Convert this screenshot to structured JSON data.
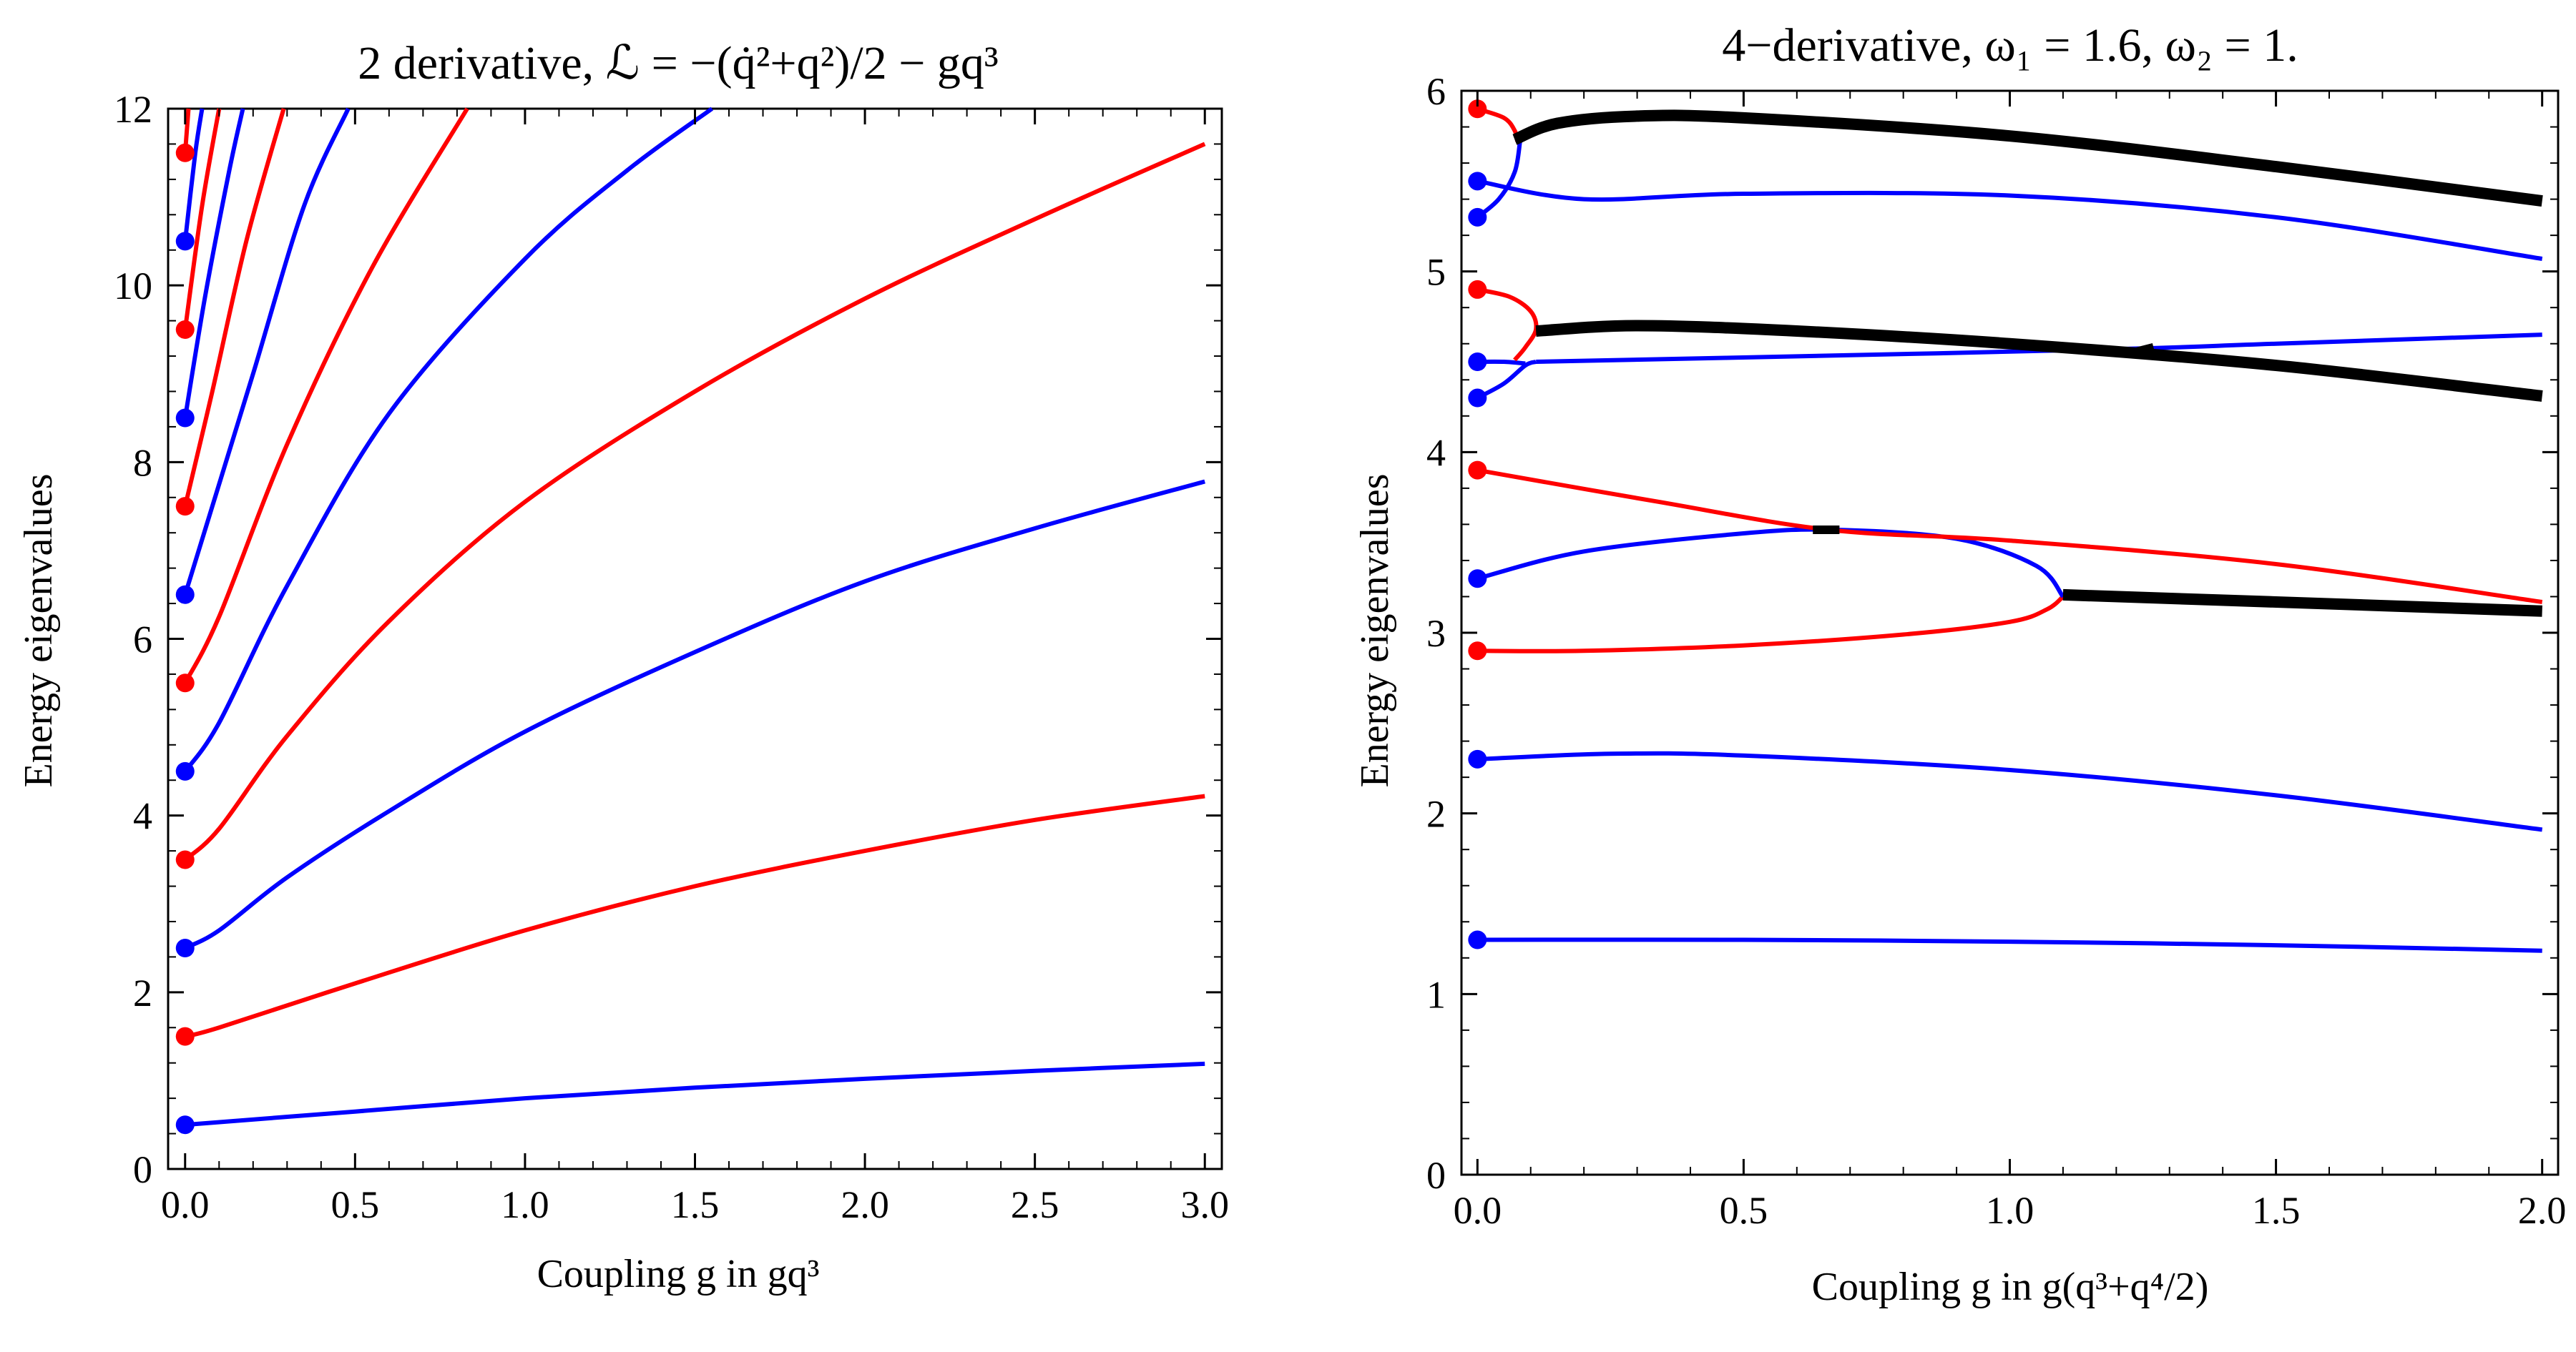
{
  "colors": {
    "even_levels": "#0000ff",
    "odd_levels": "#ff0000",
    "merged_levels": "#000000"
  },
  "chart_data": [
    {
      "type": "line",
      "title": "2 derivative, ℒ = −(q̇²+q²)/2 − gq³",
      "xlabel": "Coupling g in gq³",
      "ylabel": "Energy eigenvalues",
      "xlim": [
        -0.05,
        3.05
      ],
      "ylim": [
        0,
        12
      ],
      "xticks": [
        {
          "value": 0.0,
          "label": "0.0"
        },
        {
          "value": 0.5,
          "label": "0.5"
        },
        {
          "value": 1.0,
          "label": "1.0"
        },
        {
          "value": 1.5,
          "label": "1.5"
        },
        {
          "value": 2.0,
          "label": "2.0"
        },
        {
          "value": 2.5,
          "label": "2.5"
        },
        {
          "value": 3.0,
          "label": "3.0"
        }
      ],
      "yticks": [
        {
          "value": 0,
          "label": "0"
        },
        {
          "value": 2,
          "label": "2"
        },
        {
          "value": 4,
          "label": "4"
        },
        {
          "value": 6,
          "label": "6"
        },
        {
          "value": 8,
          "label": "8"
        },
        {
          "value": 10,
          "label": "10"
        },
        {
          "value": 12,
          "label": "12"
        }
      ],
      "markers": [
        {
          "x": 0,
          "y": 0.5,
          "color": "#0000ff"
        },
        {
          "x": 0,
          "y": 1.5,
          "color": "#ff0000"
        },
        {
          "x": 0,
          "y": 2.5,
          "color": "#0000ff"
        },
        {
          "x": 0,
          "y": 3.5,
          "color": "#ff0000"
        },
        {
          "x": 0,
          "y": 4.5,
          "color": "#0000ff"
        },
        {
          "x": 0,
          "y": 5.5,
          "color": "#ff0000"
        },
        {
          "x": 0,
          "y": 6.5,
          "color": "#0000ff"
        },
        {
          "x": 0,
          "y": 7.5,
          "color": "#ff0000"
        },
        {
          "x": 0,
          "y": 8.5,
          "color": "#0000ff"
        },
        {
          "x": 0,
          "y": 9.5,
          "color": "#ff0000"
        },
        {
          "x": 0,
          "y": 10.5,
          "color": "#0000ff"
        },
        {
          "x": 0,
          "y": 11.5,
          "color": "#ff0000"
        }
      ],
      "series": [
        {
          "name": "level-0",
          "color": "#0000ff",
          "width": 6,
          "points": [
            [
              0,
              0.5
            ],
            [
              0.5,
              0.65
            ],
            [
              1.0,
              0.8
            ],
            [
              1.5,
              0.92
            ],
            [
              2.0,
              1.02
            ],
            [
              2.5,
              1.11
            ],
            [
              3.0,
              1.19
            ]
          ]
        },
        {
          "name": "level-1",
          "color": "#ff0000",
          "width": 6,
          "points": [
            [
              0,
              1.5
            ],
            [
              0.1,
              1.6
            ],
            [
              0.5,
              2.1
            ],
            [
              1.0,
              2.7
            ],
            [
              1.5,
              3.2
            ],
            [
              2.0,
              3.6
            ],
            [
              2.5,
              3.95
            ],
            [
              3.0,
              4.22
            ]
          ]
        },
        {
          "name": "level-2",
          "color": "#0000ff",
          "width": 6,
          "points": [
            [
              0,
              2.5
            ],
            [
              0.1,
              2.7
            ],
            [
              0.3,
              3.3
            ],
            [
              0.6,
              4.05
            ],
            [
              1.0,
              4.95
            ],
            [
              1.5,
              5.85
            ],
            [
              2.0,
              6.65
            ],
            [
              2.5,
              7.25
            ],
            [
              3.0,
              7.78
            ]
          ]
        },
        {
          "name": "level-3",
          "color": "#ff0000",
          "width": 6,
          "points": [
            [
              0,
              3.5
            ],
            [
              0.1,
              3.85
            ],
            [
              0.3,
              4.9
            ],
            [
              0.6,
              6.2
            ],
            [
              1.0,
              7.55
            ],
            [
              1.5,
              8.8
            ],
            [
              2.0,
              9.85
            ],
            [
              2.5,
              10.75
            ],
            [
              3.0,
              11.6
            ]
          ]
        },
        {
          "name": "level-4",
          "color": "#0000ff",
          "width": 6,
          "points": [
            [
              0,
              4.5
            ],
            [
              0.1,
              5.05
            ],
            [
              0.3,
              6.6
            ],
            [
              0.6,
              8.55
            ],
            [
              1.0,
              10.3
            ],
            [
              1.3,
              11.3
            ],
            [
              1.55,
              12.0
            ]
          ]
        },
        {
          "name": "level-5",
          "color": "#ff0000",
          "width": 6,
          "points": [
            [
              0,
              5.5
            ],
            [
              0.1,
              6.25
            ],
            [
              0.3,
              8.2
            ],
            [
              0.55,
              10.2
            ],
            [
              0.83,
              12.0
            ]
          ]
        },
        {
          "name": "level-6",
          "color": "#0000ff",
          "width": 6,
          "points": [
            [
              0,
              6.5
            ],
            [
              0.08,
              7.5
            ],
            [
              0.2,
              9.0
            ],
            [
              0.35,
              10.9
            ],
            [
              0.48,
              12.0
            ]
          ]
        },
        {
          "name": "level-7",
          "color": "#ff0000",
          "width": 6,
          "points": [
            [
              0,
              7.5
            ],
            [
              0.08,
              8.8
            ],
            [
              0.18,
              10.5
            ],
            [
              0.29,
              12.0
            ]
          ]
        },
        {
          "name": "level-8",
          "color": "#0000ff",
          "width": 6,
          "points": [
            [
              0,
              8.5
            ],
            [
              0.06,
              9.9
            ],
            [
              0.13,
              11.3
            ],
            [
              0.17,
              12.0
            ]
          ]
        },
        {
          "name": "level-9",
          "color": "#ff0000",
          "width": 6,
          "points": [
            [
              0,
              9.5
            ],
            [
              0.05,
              10.9
            ],
            [
              0.1,
              12.0
            ]
          ]
        },
        {
          "name": "level-10",
          "color": "#0000ff",
          "width": 6,
          "points": [
            [
              0,
              10.5
            ],
            [
              0.03,
              11.5
            ],
            [
              0.05,
              12.0
            ]
          ]
        },
        {
          "name": "level-11",
          "color": "#ff0000",
          "width": 6,
          "points": [
            [
              0,
              11.5
            ],
            [
              0.01,
              12.0
            ]
          ]
        }
      ]
    },
    {
      "type": "line",
      "title": "4−derivative, ω₁ = 1.6, ω₂ = 1.",
      "xlabel": "Coupling g in g(q³+q⁴/2)",
      "ylabel": "Energy eigenvalues",
      "xlim": [
        -0.03,
        2.03
      ],
      "ylim": [
        0,
        6
      ],
      "xticks": [
        {
          "value": 0.0,
          "label": "0.0"
        },
        {
          "value": 0.5,
          "label": "0.5"
        },
        {
          "value": 1.0,
          "label": "1.0"
        },
        {
          "value": 1.5,
          "label": "1.5"
        },
        {
          "value": 2.0,
          "label": "2.0"
        }
      ],
      "yticks": [
        {
          "value": 0,
          "label": "0"
        },
        {
          "value": 1,
          "label": "1"
        },
        {
          "value": 2,
          "label": "2"
        },
        {
          "value": 3,
          "label": "3"
        },
        {
          "value": 4,
          "label": "4"
        },
        {
          "value": 5,
          "label": "5"
        },
        {
          "value": 6,
          "label": "6"
        }
      ],
      "markers": [
        {
          "x": 0,
          "y": 1.3,
          "color": "#0000ff"
        },
        {
          "x": 0,
          "y": 2.3,
          "color": "#0000ff"
        },
        {
          "x": 0,
          "y": 2.9,
          "color": "#ff0000"
        },
        {
          "x": 0,
          "y": 3.3,
          "color": "#0000ff"
        },
        {
          "x": 0,
          "y": 3.9,
          "color": "#ff0000"
        },
        {
          "x": 0,
          "y": 4.3,
          "color": "#0000ff"
        },
        {
          "x": 0,
          "y": 4.5,
          "color": "#0000ff"
        },
        {
          "x": 0,
          "y": 4.9,
          "color": "#ff0000"
        },
        {
          "x": 0,
          "y": 5.3,
          "color": "#0000ff"
        },
        {
          "x": 0,
          "y": 5.5,
          "color": "#0000ff"
        },
        {
          "x": 0,
          "y": 5.9,
          "color": "#ff0000"
        }
      ],
      "series": [
        {
          "name": "level-1.3",
          "color": "#0000ff",
          "width": 6,
          "points": [
            [
              0,
              1.3
            ],
            [
              0.5,
              1.3
            ],
            [
              1.0,
              1.29
            ],
            [
              1.5,
              1.27
            ],
            [
              2.0,
              1.24
            ]
          ]
        },
        {
          "name": "level-2.3",
          "color": "#0000ff",
          "width": 6,
          "points": [
            [
              0,
              2.3
            ],
            [
              0.25,
              2.33
            ],
            [
              0.5,
              2.32
            ],
            [
              1.0,
              2.24
            ],
            [
              1.5,
              2.1
            ],
            [
              2.0,
              1.91
            ]
          ]
        },
        {
          "name": "level-2.9",
          "color": "#ff0000",
          "width": 6,
          "points": [
            [
              0,
              2.9
            ],
            [
              0.2,
              2.9
            ],
            [
              0.5,
              2.93
            ],
            [
              0.8,
              2.99
            ],
            [
              1.0,
              3.06
            ],
            [
              1.07,
              3.13
            ],
            [
              1.1,
              3.2
            ]
          ]
        },
        {
          "name": "level-3.3",
          "color": "#0000ff",
          "width": 6,
          "points": [
            [
              0,
              3.3
            ],
            [
              0.2,
              3.45
            ],
            [
              0.5,
              3.55
            ],
            [
              0.67,
              3.57
            ],
            [
              0.9,
              3.52
            ],
            [
              1.05,
              3.37
            ],
            [
              1.1,
              3.2
            ]
          ]
        },
        {
          "name": "level-3.9",
          "color": "#ff0000",
          "width": 6,
          "points": [
            [
              0,
              3.9
            ],
            [
              0.33,
              3.73
            ],
            [
              0.66,
              3.57
            ],
            [
              1.0,
              3.51
            ],
            [
              1.5,
              3.38
            ],
            [
              2.0,
              3.17
            ]
          ]
        },
        {
          "name": "merge-3.2",
          "color": "#000000",
          "width": 16,
          "points": [
            [
              1.1,
              3.21
            ],
            [
              1.5,
              3.17
            ],
            [
              2.0,
              3.12
            ]
          ]
        },
        {
          "name": "marker-0.65",
          "color": "#000000",
          "width": 12,
          "points": [
            [
              0.63,
              3.57
            ],
            [
              0.68,
              3.57
            ]
          ]
        },
        {
          "name": "level-4.3",
          "color": "#0000ff",
          "width": 6,
          "points": [
            [
              0,
              4.3
            ],
            [
              0.05,
              4.38
            ],
            [
              0.09,
              4.48
            ],
            [
              0.11,
              4.5
            ]
          ]
        },
        {
          "name": "level-4.5",
          "color": "#0000ff",
          "width": 6,
          "points": [
            [
              0,
              4.5
            ],
            [
              0.05,
              4.5
            ],
            [
              0.09,
              4.49
            ]
          ]
        },
        {
          "name": "line-4.5-right",
          "color": "#0000ff",
          "width": 6,
          "points": [
            [
              0.11,
              4.5
            ],
            [
              0.6,
              4.53
            ],
            [
              1.2,
              4.57
            ],
            [
              1.5,
              4.6
            ],
            [
              2.0,
              4.65
            ]
          ]
        },
        {
          "name": "level-4.9",
          "color": "#ff0000",
          "width": 6,
          "points": [
            [
              0,
              4.9
            ],
            [
              0.06,
              4.86
            ],
            [
              0.1,
              4.78
            ],
            [
              0.11,
              4.68
            ],
            [
              0.09,
              4.58
            ],
            [
              0.07,
              4.51
            ]
          ]
        },
        {
          "name": "merge-4.6",
          "color": "#000000",
          "width": 16,
          "points": [
            [
              0.11,
              4.67
            ],
            [
              0.3,
              4.7
            ],
            [
              0.6,
              4.67
            ],
            [
              1.0,
              4.6
            ],
            [
              1.5,
              4.48
            ],
            [
              2.0,
              4.31
            ]
          ]
        },
        {
          "name": "marker-1.25",
          "color": "#000000",
          "width": 12,
          "points": [
            [
              1.23,
              4.55
            ],
            [
              1.27,
              4.58
            ]
          ]
        },
        {
          "name": "level-5.3",
          "color": "#0000ff",
          "width": 6,
          "points": [
            [
              0,
              5.3
            ],
            [
              0.04,
              5.4
            ],
            [
              0.07,
              5.55
            ],
            [
              0.08,
              5.72
            ]
          ]
        },
        {
          "name": "level-5.5",
          "color": "#0000ff",
          "width": 6,
          "points": [
            [
              0,
              5.5
            ],
            [
              0.2,
              5.4
            ],
            [
              0.5,
              5.43
            ],
            [
              1.0,
              5.42
            ],
            [
              1.5,
              5.3
            ],
            [
              2.0,
              5.07
            ]
          ]
        },
        {
          "name": "level-5.9",
          "color": "#ff0000",
          "width": 6,
          "points": [
            [
              0,
              5.9
            ],
            [
              0.05,
              5.85
            ],
            [
              0.07,
              5.78
            ],
            [
              0.075,
              5.72
            ]
          ]
        },
        {
          "name": "merge-5.8",
          "color": "#000000",
          "width": 16,
          "points": [
            [
              0.07,
              5.73
            ],
            [
              0.15,
              5.82
            ],
            [
              0.3,
              5.86
            ],
            [
              0.5,
              5.85
            ],
            [
              1.0,
              5.75
            ],
            [
              1.5,
              5.58
            ],
            [
              2.0,
              5.39
            ]
          ]
        }
      ]
    }
  ]
}
